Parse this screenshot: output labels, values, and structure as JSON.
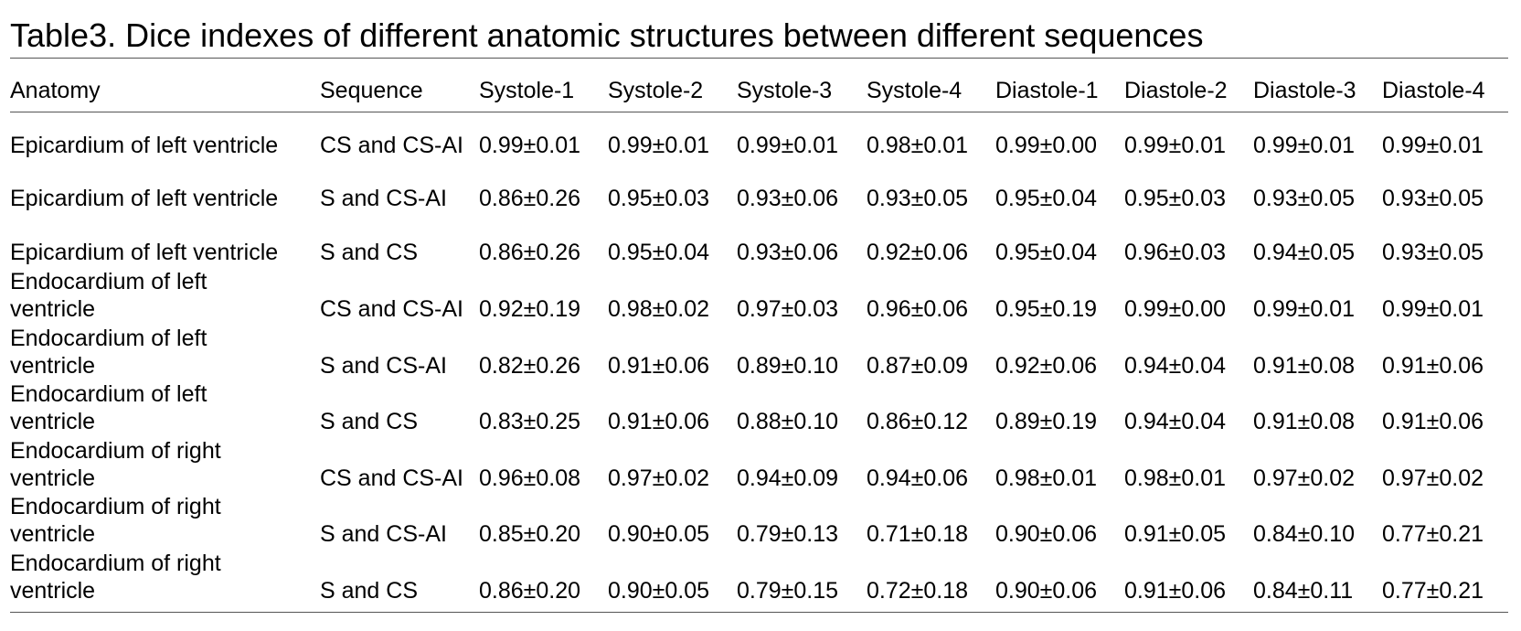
{
  "title": "Table3. Dice indexes of different anatomic structures between different sequences",
  "table": {
    "header": [
      "Anatomy",
      "Sequence",
      "Systole-1",
      "Systole-2",
      "Systole-3",
      "Systole-4",
      "Diastole-1",
      "Diastole-2",
      "Diastole-3",
      "Diastole-4"
    ],
    "rows": [
      [
        "Epicardium of left ventricle",
        "CS and CS-AI",
        "0.99±0.01",
        "0.99±0.01",
        "0.99±0.01",
        "0.98±0.01",
        "0.99±0.00",
        "0.99±0.01",
        "0.99±0.01",
        "0.99±0.01"
      ],
      [
        "Epicardium of left ventricle",
        "S and CS-AI",
        "0.86±0.26",
        "0.95±0.03",
        "0.93±0.06",
        "0.93±0.05",
        "0.95±0.04",
        "0.95±0.03",
        "0.93±0.05",
        "0.93±0.05"
      ],
      [
        "Epicardium of left ventricle",
        "S and CS",
        "0.86±0.26",
        "0.95±0.04",
        "0.93±0.06",
        "0.92±0.06",
        "0.95±0.04",
        "0.96±0.03",
        "0.94±0.05",
        "0.93±0.05"
      ],
      [
        "Endocardium of left\nventricle",
        "CS and CS-AI",
        "0.92±0.19",
        "0.98±0.02",
        "0.97±0.03",
        "0.96±0.06",
        "0.95±0.19",
        "0.99±0.00",
        "0.99±0.01",
        "0.99±0.01"
      ],
      [
        "Endocardium of left\nventricle",
        "S and CS-AI",
        "0.82±0.26",
        "0.91±0.06",
        "0.89±0.10",
        "0.87±0.09",
        "0.92±0.06",
        "0.94±0.04",
        "0.91±0.08",
        "0.91±0.06"
      ],
      [
        "Endocardium of left\nventricle",
        "S and CS",
        "0.83±0.25",
        "0.91±0.06",
        "0.88±0.10",
        "0.86±0.12",
        "0.89±0.19",
        "0.94±0.04",
        "0.91±0.08",
        "0.91±0.06"
      ],
      [
        "Endocardium of right\nventricle",
        "CS and CS-AI",
        "0.96±0.08",
        "0.97±0.02",
        "0.94±0.09",
        "0.94±0.06",
        "0.98±0.01",
        "0.98±0.01",
        "0.97±0.02",
        "0.97±0.02"
      ],
      [
        "Endocardium of right\nventricle",
        "S and CS-AI",
        "0.85±0.20",
        "0.90±0.05",
        "0.79±0.13",
        "0.71±0.18",
        "0.90±0.06",
        "0.91±0.05",
        "0.84±0.10",
        "0.77±0.21"
      ],
      [
        "Endocardium of right\nventricle",
        "S and CS",
        "0.86±0.20",
        "0.90±0.05",
        "0.79±0.15",
        "0.72±0.18",
        "0.90±0.06",
        "0.91±0.06",
        "0.84±0.11",
        "0.77±0.21"
      ]
    ]
  }
}
